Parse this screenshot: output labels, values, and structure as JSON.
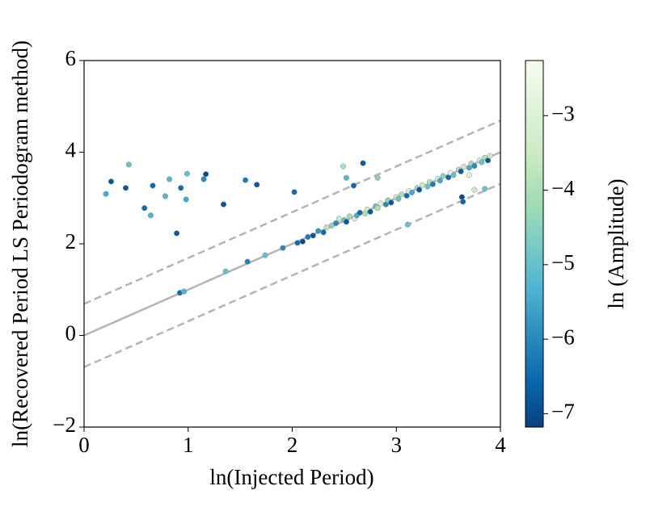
{
  "chart_data": {
    "type": "scatter",
    "x_label": "ln(Injected Period)",
    "y_label": "ln(Recovered Period LS Periodogram method)",
    "colorbar_label": "ln (Amplitude)",
    "xlim": [
      0,
      4
    ],
    "ylim": [
      -2,
      6
    ],
    "xticks": [
      0,
      1,
      2,
      3,
      4
    ],
    "yticks": [
      {
        "value": -2,
        "label": "−2"
      },
      0,
      2,
      4,
      6
    ],
    "clim": [
      -7.18,
      -2.26
    ],
    "cticks": [
      {
        "value": -7,
        "label": "−7"
      },
      {
        "value": -6,
        "label": "−6"
      },
      {
        "value": -5,
        "label": "−5"
      },
      {
        "value": -4,
        "label": "−4"
      },
      {
        "value": -3,
        "label": "−3"
      }
    ],
    "colormap": [
      "#084081",
      "#0868ac",
      "#2b8cbe",
      "#4eb3d3",
      "#7bccc4",
      "#a8ddb5",
      "#ccebc5",
      "#e0f3db",
      "#f7fcf0"
    ],
    "edge_color": "#8a8a8a",
    "line_color": "#b4b4b4",
    "lines": [
      {
        "style": "solid",
        "x": [
          0,
          4
        ],
        "y": [
          0,
          4
        ]
      },
      {
        "style": "dashed",
        "x": [
          0,
          4
        ],
        "y": [
          0.69,
          4.69
        ]
      },
      {
        "style": "dashed",
        "x": [
          0,
          4
        ],
        "y": [
          -0.69,
          3.31
        ]
      }
    ],
    "series": [
      {
        "x": [
          0.21,
          0.26,
          0.4,
          0.43,
          0.66,
          0.78,
          0.82,
          0.58,
          0.64,
          0.89,
          0.93,
          0.99,
          0.98,
          1.15,
          1.17,
          1.34,
          1.55,
          1.66,
          2.02,
          0.92,
          0.96,
          1.36,
          1.57,
          1.74,
          1.91,
          2.49,
          2.52,
          2.68,
          2.59,
          2.82,
          3.11,
          3.63,
          3.64,
          2.05,
          2.1,
          2.15,
          2.2,
          2.25,
          2.3,
          2.33,
          2.38,
          2.42,
          2.45,
          2.5,
          2.52,
          2.55,
          2.6,
          2.62,
          2.65,
          2.7,
          2.72,
          2.75,
          2.8,
          2.82,
          2.85,
          2.9,
          2.92,
          2.95,
          3.0,
          3.02,
          3.05,
          3.1,
          3.12,
          3.15,
          3.2,
          3.22,
          3.25,
          3.3,
          3.32,
          3.35,
          3.4,
          3.42,
          3.45,
          3.5,
          3.52,
          3.55,
          3.6,
          3.62,
          3.65,
          3.7,
          3.72,
          3.75,
          3.8,
          3.82,
          3.85,
          3.88,
          3.9,
          3.75,
          3.85,
          3.7
        ],
        "y": [
          3.09,
          3.36,
          3.22,
          3.73,
          3.27,
          3.04,
          3.41,
          2.78,
          2.62,
          2.23,
          3.22,
          3.53,
          2.97,
          3.41,
          3.52,
          2.86,
          3.39,
          3.29,
          3.13,
          0.93,
          0.96,
          1.4,
          1.61,
          1.75,
          1.91,
          3.69,
          3.44,
          3.76,
          3.27,
          3.44,
          2.42,
          3.02,
          2.92,
          2.02,
          2.05,
          2.15,
          2.18,
          2.28,
          2.25,
          2.36,
          2.4,
          2.45,
          2.55,
          2.52,
          2.48,
          2.6,
          2.55,
          2.62,
          2.68,
          2.66,
          2.75,
          2.7,
          2.82,
          2.78,
          2.88,
          2.86,
          2.95,
          2.9,
          3.02,
          2.98,
          3.08,
          3.05,
          3.15,
          3.12,
          3.22,
          3.18,
          3.28,
          3.25,
          3.35,
          3.3,
          3.42,
          3.38,
          3.48,
          3.45,
          3.55,
          3.5,
          3.62,
          3.58,
          3.68,
          3.66,
          3.75,
          3.7,
          3.82,
          3.78,
          3.88,
          3.82,
          3.92,
          3.18,
          3.2,
          3.5
        ],
        "c": [
          -5.5,
          -6.8,
          -6.8,
          -5.0,
          -6.5,
          -5.2,
          -5.2,
          -6.5,
          -5.3,
          -6.8,
          -6.5,
          -5.0,
          -5.5,
          -6.0,
          -7.0,
          -6.9,
          -6.2,
          -6.8,
          -6.5,
          -6.5,
          -5.3,
          -5.0,
          -6.2,
          -5.0,
          -6.0,
          -4.0,
          -5.2,
          -6.8,
          -6.5,
          -4.5,
          -5.0,
          -7.0,
          -6.5,
          -6.5,
          -7.0,
          -6.2,
          -6.8,
          -5.8,
          -6.5,
          -3.8,
          -4.5,
          -6.0,
          -3.5,
          -5.0,
          -6.8,
          -4.2,
          -3.2,
          -5.5,
          -6.5,
          -4.0,
          -3.5,
          -6.8,
          -5.0,
          -4.0,
          -3.0,
          -6.0,
          -4.5,
          -6.8,
          -3.5,
          -5.0,
          -4.0,
          -6.5,
          -3.0,
          -5.5,
          -4.2,
          -6.8,
          -3.5,
          -5.0,
          -4.0,
          -6.2,
          -3.2,
          -5.5,
          -4.5,
          -6.5,
          -3.0,
          -5.0,
          -4.0,
          -6.8,
          -3.5,
          -5.5,
          -4.2,
          -6.0,
          -3.2,
          -5.0,
          -4.0,
          -6.8,
          -3.5,
          -3.5,
          -5.0,
          -3.0
        ]
      }
    ]
  }
}
